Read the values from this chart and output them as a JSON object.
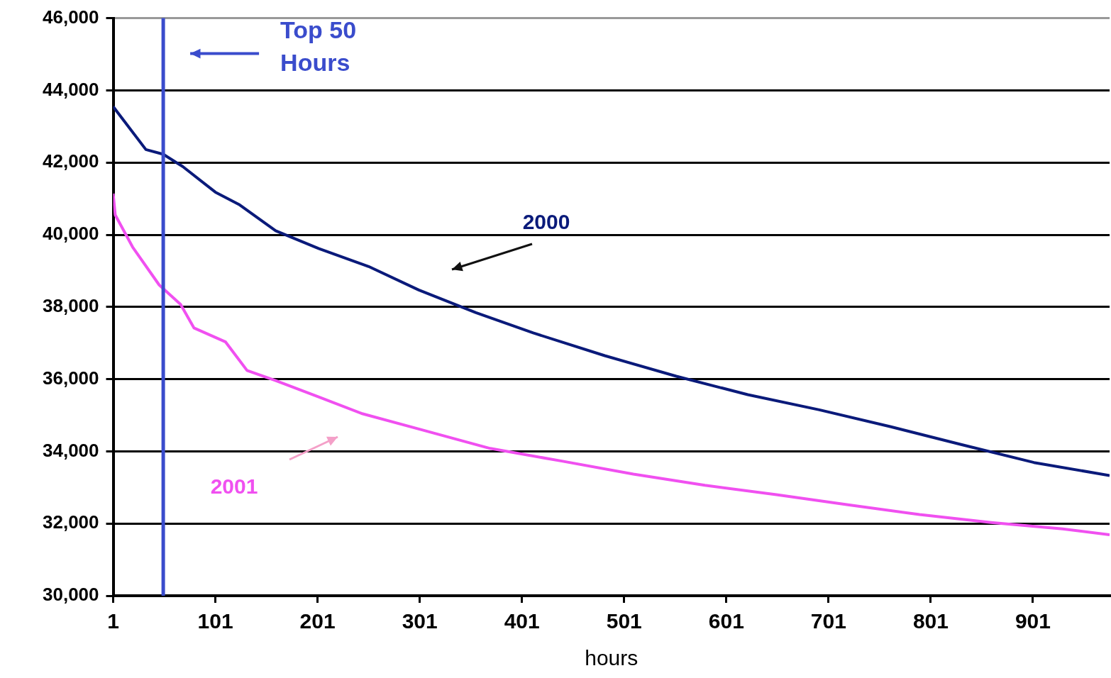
{
  "chart_data": {
    "type": "line",
    "xlabel": "hours",
    "xlim": [
      1,
      976
    ],
    "xticks": [
      1,
      101,
      201,
      301,
      401,
      501,
      601,
      701,
      801,
      901
    ],
    "ylim": [
      30000,
      46000
    ],
    "yticks": [
      {
        "value": 30000,
        "label": "30,000"
      },
      {
        "value": 32000,
        "label": "32,000"
      },
      {
        "value": 34000,
        "label": "34,000"
      },
      {
        "value": 36000,
        "label": "36,000"
      },
      {
        "value": 38000,
        "label": "38,000"
      },
      {
        "value": 40000,
        "label": "40,000"
      },
      {
        "value": 42000,
        "label": "42,000"
      },
      {
        "value": 44000,
        "label": "44,000"
      },
      {
        "value": 46000,
        "label": "46,000"
      }
    ],
    "grid": "y",
    "legend": false,
    "marker": "none",
    "line_style": "solid",
    "ref_lines": [
      {
        "axis": "x",
        "value": 50,
        "label": "Top 50 Hours",
        "color": "#3a4ccc"
      }
    ],
    "series": [
      {
        "name": "2000",
        "color": "#0a1a7a",
        "x": [
          1,
          33,
          50,
          69,
          101,
          124,
          160,
          202,
          251,
          300,
          356,
          412,
          482,
          552,
          622,
          692,
          762,
          832,
          902,
          976
        ],
        "values": [
          43550,
          42360,
          42230,
          41890,
          41180,
          40840,
          40110,
          39620,
          39120,
          38470,
          37840,
          37280,
          36650,
          36080,
          35570,
          35150,
          34680,
          34180,
          33690,
          33330
        ]
      },
      {
        "name": "2001",
        "color": "#f050f0",
        "x": [
          1,
          3,
          20,
          46,
          67,
          80,
          111,
          132,
          160,
          202,
          244,
          300,
          370,
          440,
          510,
          580,
          650,
          720,
          790,
          860,
          930,
          976
        ],
        "values": [
          41140,
          40550,
          39660,
          38610,
          38070,
          37420,
          37030,
          36240,
          35960,
          35510,
          35050,
          34620,
          34080,
          33730,
          33370,
          33060,
          32800,
          32520,
          32250,
          32030,
          31850,
          31690
        ]
      }
    ]
  }
}
